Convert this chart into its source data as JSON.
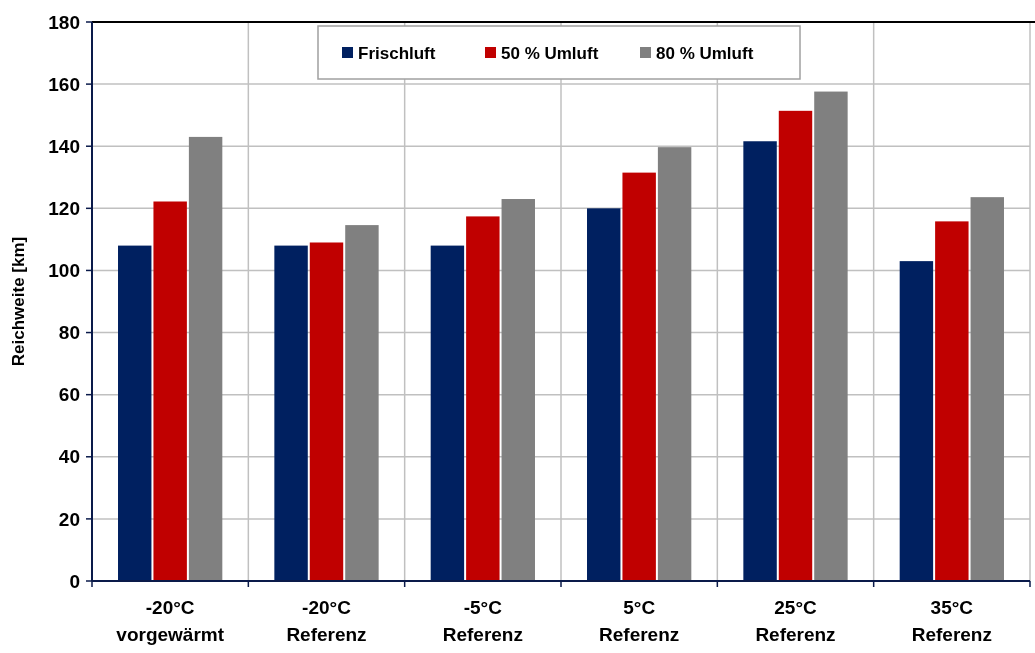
{
  "chart_data": {
    "type": "bar",
    "ylabel": "Reichweite [km]",
    "categories": [
      "-20°C\nvorgewärmt",
      "-20°C\nReferenz",
      "-5°C\nReferenz",
      "5°C\nReferenz",
      "25°C\nReferenz",
      "35°C\nReferenz"
    ],
    "series": [
      {
        "name": "Frischluft",
        "color": "#002060",
        "values": [
          108,
          108,
          108,
          120,
          141.6,
          103
        ]
      },
      {
        "name": "50 % Umluft",
        "color": "#c00000",
        "values": [
          122.2,
          109,
          117.4,
          131.5,
          151.4,
          115.8
        ]
      },
      {
        "name": "80 % Umluft",
        "color": "#808080",
        "values": [
          143,
          114.6,
          123,
          139.7,
          157.6,
          123.6
        ]
      }
    ],
    "ylim": [
      0,
      180
    ],
    "yticks": [
      0,
      20,
      40,
      60,
      80,
      100,
      120,
      140,
      160,
      180
    ],
    "grid": true,
    "legend": "top"
  }
}
